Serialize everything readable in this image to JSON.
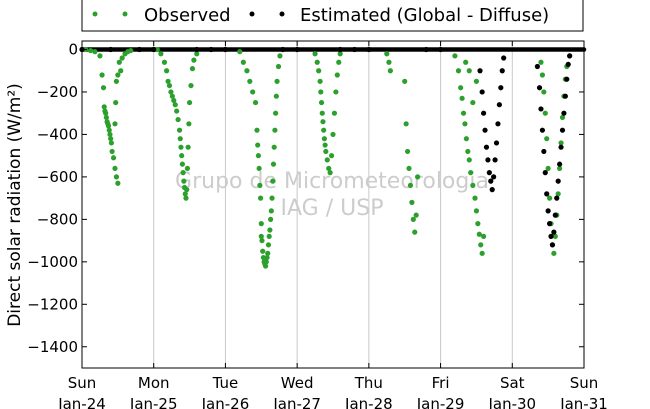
{
  "chart_data": {
    "type": "scatter",
    "title": "",
    "ylabel": "Direct solar radiation (W/m²)",
    "ylim": [
      -1500,
      40
    ],
    "yticks": [
      0,
      -200,
      -400,
      -600,
      -800,
      -1000,
      -1200,
      -1400
    ],
    "ytick_labels": [
      "0",
      "−200",
      "−400",
      "−600",
      "−800",
      "−1000",
      "−1200",
      "−1400"
    ],
    "xlim": [
      0,
      7
    ],
    "xticks": [
      {
        "day": "Sun",
        "date": "Jan-24"
      },
      {
        "day": "Mon",
        "date": "Jan-25"
      },
      {
        "day": "Tue",
        "date": "Jan-26"
      },
      {
        "day": "Wed",
        "date": "Jan-27"
      },
      {
        "day": "Thu",
        "date": "Jan-28"
      },
      {
        "day": "Fri",
        "date": "Jan-29"
      },
      {
        "day": "Sat",
        "date": "Jan-30"
      },
      {
        "day": "Sun",
        "date": "Jan-31"
      }
    ],
    "grid": "vertical",
    "legend_position": "top",
    "watermark": [
      "Grupo de Micrometeorologia",
      "IAG / USP"
    ],
    "series": [
      {
        "name": "Observed",
        "color": "#2ca02c",
        "points": [
          [
            0.05,
            0
          ],
          [
            0.12,
            -5
          ],
          [
            0.18,
            -10
          ],
          [
            0.25,
            -30
          ],
          [
            0.28,
            -120
          ],
          [
            0.3,
            -180
          ],
          [
            0.31,
            -270
          ],
          [
            0.32,
            -290
          ],
          [
            0.33,
            -300
          ],
          [
            0.34,
            -320
          ],
          [
            0.35,
            -340
          ],
          [
            0.36,
            -350
          ],
          [
            0.37,
            -360
          ],
          [
            0.38,
            -380
          ],
          [
            0.39,
            -400
          ],
          [
            0.4,
            -420
          ],
          [
            0.41,
            -440
          ],
          [
            0.42,
            -480
          ],
          [
            0.44,
            -510
          ],
          [
            0.46,
            -560
          ],
          [
            0.48,
            -600
          ],
          [
            0.5,
            -630
          ],
          [
            0.46,
            -350
          ],
          [
            0.47,
            -250
          ],
          [
            0.48,
            -150
          ],
          [
            0.5,
            -120
          ],
          [
            0.52,
            -60
          ],
          [
            0.54,
            -100
          ],
          [
            0.56,
            -40
          ],
          [
            0.6,
            -20
          ],
          [
            0.64,
            -10
          ],
          [
            0.68,
            -5
          ],
          [
            1.05,
            0
          ],
          [
            1.1,
            -20
          ],
          [
            1.15,
            -60
          ],
          [
            1.18,
            -100
          ],
          [
            1.2,
            -150
          ],
          [
            1.22,
            -170
          ],
          [
            1.24,
            -200
          ],
          [
            1.26,
            -220
          ],
          [
            1.28,
            -240
          ],
          [
            1.3,
            -260
          ],
          [
            1.32,
            -290
          ],
          [
            1.34,
            -330
          ],
          [
            1.36,
            -380
          ],
          [
            1.37,
            -420
          ],
          [
            1.38,
            -460
          ],
          [
            1.39,
            -500
          ],
          [
            1.4,
            -540
          ],
          [
            1.41,
            -580
          ],
          [
            1.42,
            -620
          ],
          [
            1.43,
            -650
          ],
          [
            1.44,
            -680
          ],
          [
            1.45,
            -700
          ],
          [
            1.46,
            -660
          ],
          [
            1.47,
            -560
          ],
          [
            1.48,
            -460
          ],
          [
            1.49,
            -350
          ],
          [
            1.5,
            -250
          ],
          [
            1.52,
            -170
          ],
          [
            1.54,
            -90
          ],
          [
            1.56,
            -50
          ],
          [
            1.6,
            -20
          ],
          [
            2.2,
            -10
          ],
          [
            2.25,
            -60
          ],
          [
            2.3,
            -100
          ],
          [
            2.34,
            -150
          ],
          [
            2.38,
            -200
          ],
          [
            2.42,
            -250
          ],
          [
            2.44,
            -380
          ],
          [
            2.45,
            -450
          ],
          [
            2.46,
            -500
          ],
          [
            2.47,
            -560
          ],
          [
            2.48,
            -640
          ],
          [
            2.49,
            -700
          ],
          [
            2.5,
            -820
          ],
          [
            2.5,
            -880
          ],
          [
            2.51,
            -900
          ],
          [
            2.52,
            -950
          ],
          [
            2.53,
            -980
          ],
          [
            2.54,
            -1000
          ],
          [
            2.55,
            -1010
          ],
          [
            2.56,
            -1020
          ],
          [
            2.57,
            -1000
          ],
          [
            2.58,
            -980
          ],
          [
            2.59,
            -960
          ],
          [
            2.6,
            -920
          ],
          [
            2.61,
            -880
          ],
          [
            2.62,
            -850
          ],
          [
            2.63,
            -800
          ],
          [
            2.64,
            -760
          ],
          [
            2.65,
            -700
          ],
          [
            2.66,
            -620
          ],
          [
            2.67,
            -540
          ],
          [
            2.68,
            -460
          ],
          [
            2.69,
            -380
          ],
          [
            2.7,
            -300
          ],
          [
            2.71,
            -220
          ],
          [
            2.72,
            -150
          ],
          [
            2.74,
            -80
          ],
          [
            2.76,
            -30
          ],
          [
            3.25,
            -20
          ],
          [
            3.28,
            -60
          ],
          [
            3.3,
            -100
          ],
          [
            3.32,
            -150
          ],
          [
            3.33,
            -200
          ],
          [
            3.34,
            -250
          ],
          [
            3.35,
            -300
          ],
          [
            3.36,
            -340
          ],
          [
            3.37,
            -380
          ],
          [
            3.38,
            -420
          ],
          [
            3.39,
            -450
          ],
          [
            3.4,
            -480
          ],
          [
            3.42,
            -520
          ],
          [
            3.44,
            -560
          ],
          [
            3.46,
            -580
          ],
          [
            3.48,
            -500
          ],
          [
            3.5,
            -400
          ],
          [
            3.52,
            -300
          ],
          [
            3.54,
            -200
          ],
          [
            3.56,
            -120
          ],
          [
            3.58,
            -60
          ],
          [
            3.6,
            -20
          ],
          [
            4.25,
            -20
          ],
          [
            4.28,
            -60
          ],
          [
            4.3,
            -100
          ],
          [
            4.5,
            -150
          ],
          [
            4.52,
            -350
          ],
          [
            4.54,
            -480
          ],
          [
            4.56,
            -560
          ],
          [
            4.58,
            -640
          ],
          [
            4.6,
            -720
          ],
          [
            4.62,
            -800
          ],
          [
            4.64,
            -860
          ],
          [
            4.66,
            -780
          ],
          [
            4.68,
            -600
          ],
          [
            5.2,
            -30
          ],
          [
            5.25,
            -100
          ],
          [
            5.28,
            -180
          ],
          [
            5.3,
            -230
          ],
          [
            5.32,
            -300
          ],
          [
            5.34,
            -350
          ],
          [
            5.36,
            -420
          ],
          [
            5.38,
            -480
          ],
          [
            5.4,
            -520
          ],
          [
            5.42,
            -580
          ],
          [
            5.45,
            -640
          ],
          [
            5.48,
            -700
          ],
          [
            5.5,
            -760
          ],
          [
            5.52,
            -820
          ],
          [
            5.54,
            -870
          ],
          [
            5.56,
            -920
          ],
          [
            5.58,
            -960
          ],
          [
            5.6,
            -880
          ],
          [
            5.5,
            -150
          ],
          [
            5.45,
            -250
          ],
          [
            5.4,
            -100
          ],
          [
            5.35,
            -60
          ],
          [
            6.4,
            -60
          ],
          [
            6.42,
            -120
          ],
          [
            6.44,
            -200
          ],
          [
            6.46,
            -300
          ],
          [
            6.48,
            -420
          ],
          [
            6.5,
            -560
          ],
          [
            6.52,
            -700
          ],
          [
            6.54,
            -820
          ],
          [
            6.56,
            -920
          ],
          [
            6.58,
            -960
          ],
          [
            6.6,
            -880
          ],
          [
            6.62,
            -780
          ],
          [
            6.64,
            -680
          ],
          [
            6.66,
            -560
          ],
          [
            6.68,
            -440
          ],
          [
            6.7,
            -320
          ],
          [
            6.72,
            -220
          ],
          [
            6.74,
            -140
          ],
          [
            6.76,
            -80
          ],
          [
            6.8,
            -30
          ]
        ]
      },
      {
        "name": "Estimated (Global - Diffuse)",
        "color": "#000000",
        "points": [
          [
            0.0,
            0
          ],
          [
            0.4,
            0
          ],
          [
            0.8,
            0
          ],
          [
            1.0,
            0
          ],
          [
            1.6,
            0
          ],
          [
            1.8,
            0
          ],
          [
            2.0,
            0
          ],
          [
            2.8,
            0
          ],
          [
            3.0,
            0
          ],
          [
            3.6,
            0
          ],
          [
            3.8,
            0
          ],
          [
            4.0,
            0
          ],
          [
            4.8,
            0
          ],
          [
            5.0,
            0
          ],
          [
            5.55,
            -100
          ],
          [
            5.58,
            -200
          ],
          [
            5.6,
            -300
          ],
          [
            5.62,
            -380
          ],
          [
            5.64,
            -460
          ],
          [
            5.66,
            -520
          ],
          [
            5.68,
            -580
          ],
          [
            5.7,
            -620
          ],
          [
            5.72,
            -660
          ],
          [
            5.74,
            -600
          ],
          [
            5.76,
            -520
          ],
          [
            5.78,
            -440
          ],
          [
            5.8,
            -350
          ],
          [
            5.82,
            -260
          ],
          [
            5.84,
            -180
          ],
          [
            5.86,
            -100
          ],
          [
            5.88,
            -40
          ],
          [
            6.35,
            -80
          ],
          [
            6.38,
            -180
          ],
          [
            6.4,
            -280
          ],
          [
            6.42,
            -380
          ],
          [
            6.44,
            -480
          ],
          [
            6.46,
            -580
          ],
          [
            6.48,
            -680
          ],
          [
            6.5,
            -760
          ],
          [
            6.52,
            -820
          ],
          [
            6.54,
            -880
          ],
          [
            6.56,
            -920
          ],
          [
            6.58,
            -860
          ],
          [
            6.6,
            -780
          ],
          [
            6.62,
            -700
          ],
          [
            6.64,
            -620
          ],
          [
            6.66,
            -540
          ],
          [
            6.68,
            -460
          ],
          [
            6.7,
            -380
          ],
          [
            6.72,
            -300
          ],
          [
            6.74,
            -220
          ],
          [
            6.76,
            -140
          ],
          [
            6.78,
            -70
          ],
          [
            6.8,
            -30
          ]
        ]
      }
    ]
  }
}
